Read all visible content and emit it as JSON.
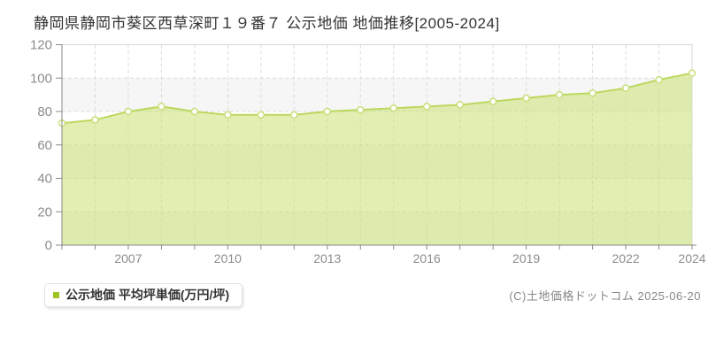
{
  "page": {
    "title": "静岡県静岡市葵区西草深町１９番７ 公示地価 地価推移[2005-2024]"
  },
  "legend": {
    "label": "公示地価 平均坪単価(万円/坪)"
  },
  "footer": {
    "copyright": "(C)土地価格ドットコム 2025-06-20"
  },
  "chart_data": {
    "type": "area",
    "title": "静岡県静岡市葵区西草深町１９番７ 公示地価 地価推移[2005-2024]",
    "x": [
      2005,
      2006,
      2007,
      2008,
      2009,
      2010,
      2011,
      2012,
      2013,
      2014,
      2015,
      2016,
      2017,
      2018,
      2019,
      2020,
      2021,
      2022,
      2023,
      2024
    ],
    "series": [
      {
        "name": "公示地価 平均坪単価(万円/坪)",
        "values": [
          73,
          75,
          80,
          83,
          80,
          78,
          78,
          78,
          80,
          81,
          82,
          83,
          84,
          86,
          88,
          90,
          91,
          94,
          99,
          103
        ]
      }
    ],
    "xlabel": "",
    "ylabel": "",
    "ylim": [
      0,
      120
    ],
    "yticks": [
      0,
      20,
      40,
      60,
      80,
      100,
      120
    ],
    "xtick_labels": [
      "2007",
      "2010",
      "2013",
      "2016",
      "2019",
      "2022",
      "2024"
    ],
    "grid": true,
    "legend_position": "bottom-left",
    "colors": {
      "line": "#bdd75e",
      "fill": "#cbe173",
      "marker_fill": "#ffffff",
      "marker_stroke": "#c7df79",
      "legend_marker": "#9fc41f",
      "band_gray": "#f6f6f6",
      "band_white": "#ffffff",
      "gridline": "#dcdcdc",
      "plot_border": "#d9d9d9",
      "axis": "#888888",
      "tick_label": "#8c8c8c"
    }
  }
}
